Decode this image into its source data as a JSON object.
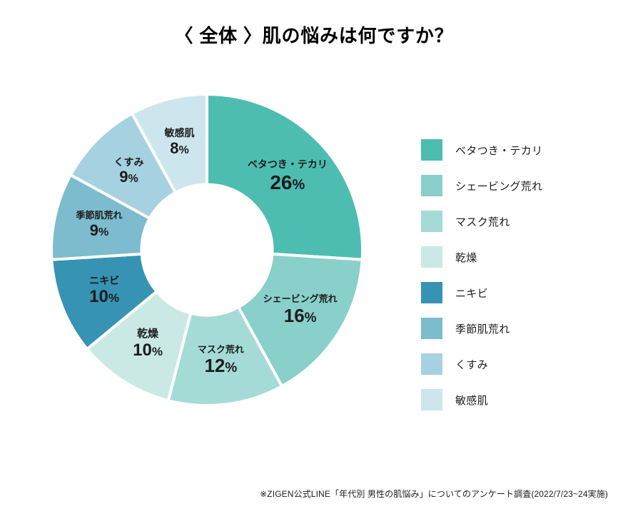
{
  "title": "〈 全体 〉肌の悩みは何ですか？",
  "title_fontsize": 26,
  "background_color": "#ffffff",
  "donut": {
    "type": "pie",
    "gap_color": "#ffffff",
    "gap_width": 4,
    "inner_radius_ratio": 0.42,
    "start_angle_deg": 0,
    "segments": [
      {
        "label": "ベタつき・テカリ",
        "value": 26,
        "color": "#4dbdb2",
        "label_fontsize": 14,
        "pct_fontsize": 28
      },
      {
        "label": "シェービング荒れ",
        "value": 16,
        "color": "#89d0ca",
        "label_fontsize": 13,
        "pct_fontsize": 26
      },
      {
        "label": "マスク荒れ",
        "value": 12,
        "color": "#a5dbd6",
        "label_fontsize": 13,
        "pct_fontsize": 26
      },
      {
        "label": "乾燥",
        "value": 10,
        "color": "#cae9e5",
        "label_fontsize": 15,
        "pct_fontsize": 24
      },
      {
        "label": "ニキビ",
        "value": 10,
        "color": "#3793b3",
        "label_fontsize": 14,
        "pct_fontsize": 24
      },
      {
        "label": "季節肌荒れ",
        "value": 9,
        "color": "#7dbbce",
        "label_fontsize": 13,
        "pct_fontsize": 22
      },
      {
        "label": "くすみ",
        "value": 9,
        "color": "#a6d1e0",
        "label_fontsize": 14,
        "pct_fontsize": 22
      },
      {
        "label": "敏感肌",
        "value": 8,
        "color": "#cde6ee",
        "label_fontsize": 14,
        "pct_fontsize": 22
      }
    ]
  },
  "legend_fontsize": 15,
  "footnote": "※ZIGEN公式LINE「年代別 男性の肌悩み」についてのアンケート調査(2022/7/23~24実施)",
  "footnote_fontsize": 12
}
